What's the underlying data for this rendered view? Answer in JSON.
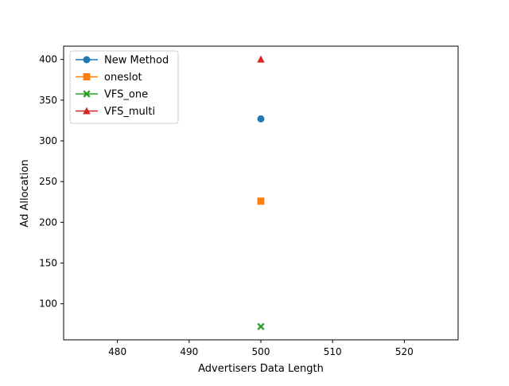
{
  "chart_data": {
    "type": "scatter",
    "title": "",
    "xlabel": "Advertisers Data Length",
    "ylabel": "Ad Allocation",
    "xlim": [
      472.5,
      527.5
    ],
    "ylim": [
      55.7,
      416.3
    ],
    "xticks": [
      480,
      490,
      500,
      510,
      520
    ],
    "yticks": [
      100,
      150,
      200,
      250,
      300,
      350,
      400
    ],
    "grid": false,
    "legend_position": "top-left",
    "series": [
      {
        "name": "New Method",
        "marker": "circle",
        "color": "#1f77b4",
        "x": [
          500
        ],
        "y": [
          327
        ]
      },
      {
        "name": "oneslot",
        "marker": "square",
        "color": "#ff7f0e",
        "x": [
          500
        ],
        "y": [
          226
        ]
      },
      {
        "name": "VFS_one",
        "marker": "x",
        "color": "#2ca02c",
        "x": [
          500
        ],
        "y": [
          72
        ]
      },
      {
        "name": "VFS_multi",
        "marker": "triangle",
        "color": "#d62728",
        "x": [
          500
        ],
        "y": [
          400
        ]
      }
    ]
  }
}
